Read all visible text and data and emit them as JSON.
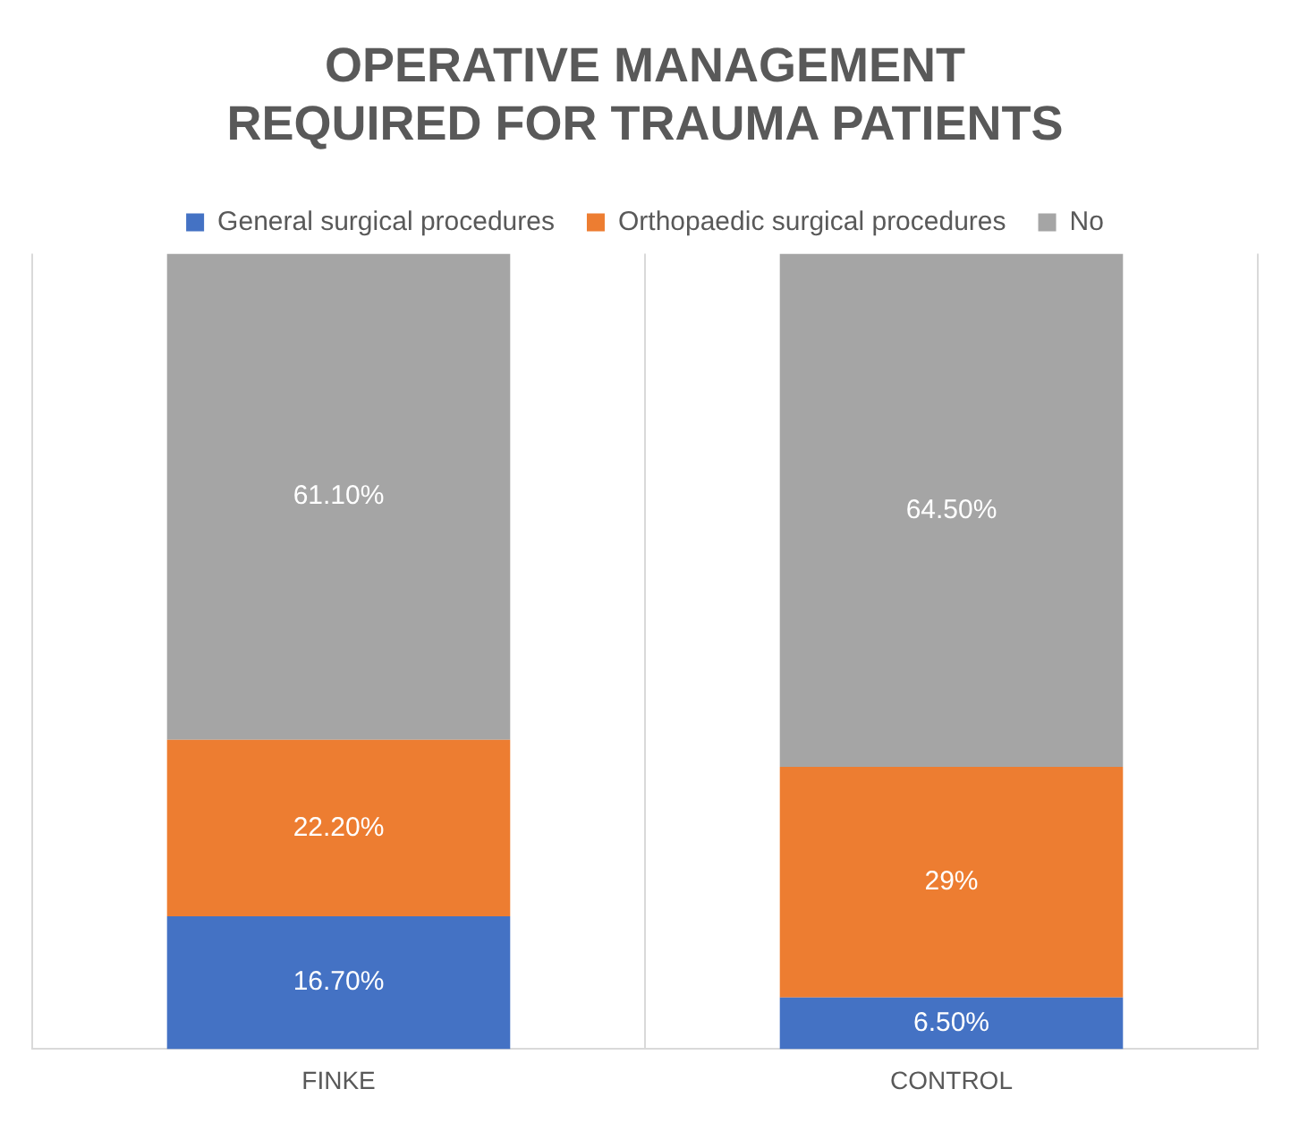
{
  "chart_data": {
    "type": "bar",
    "title": "OPERATIVE MANAGEMENT REQUIRED FOR TRAUMA PATIENTS",
    "categories": [
      "FINKE",
      "CONTROL"
    ],
    "stacked": true,
    "grid": "x",
    "legend": "top",
    "series": [
      {
        "name": "General surgical procedures",
        "color": "#4472c4",
        "values": [
          16.7,
          6.5
        ],
        "value_labels": [
          "16.70%",
          "6.50%"
        ]
      },
      {
        "name": "Orthopaedic surgical procedures",
        "color": "#ed7d31",
        "values": [
          22.2,
          29
        ],
        "value_labels": [
          "22.20%",
          "29%"
        ]
      },
      {
        "name": "No",
        "color": "#a5a5a5",
        "values": [
          61.1,
          64.5
        ],
        "value_labels": [
          "61.10%",
          "64.50%"
        ]
      }
    ]
  }
}
